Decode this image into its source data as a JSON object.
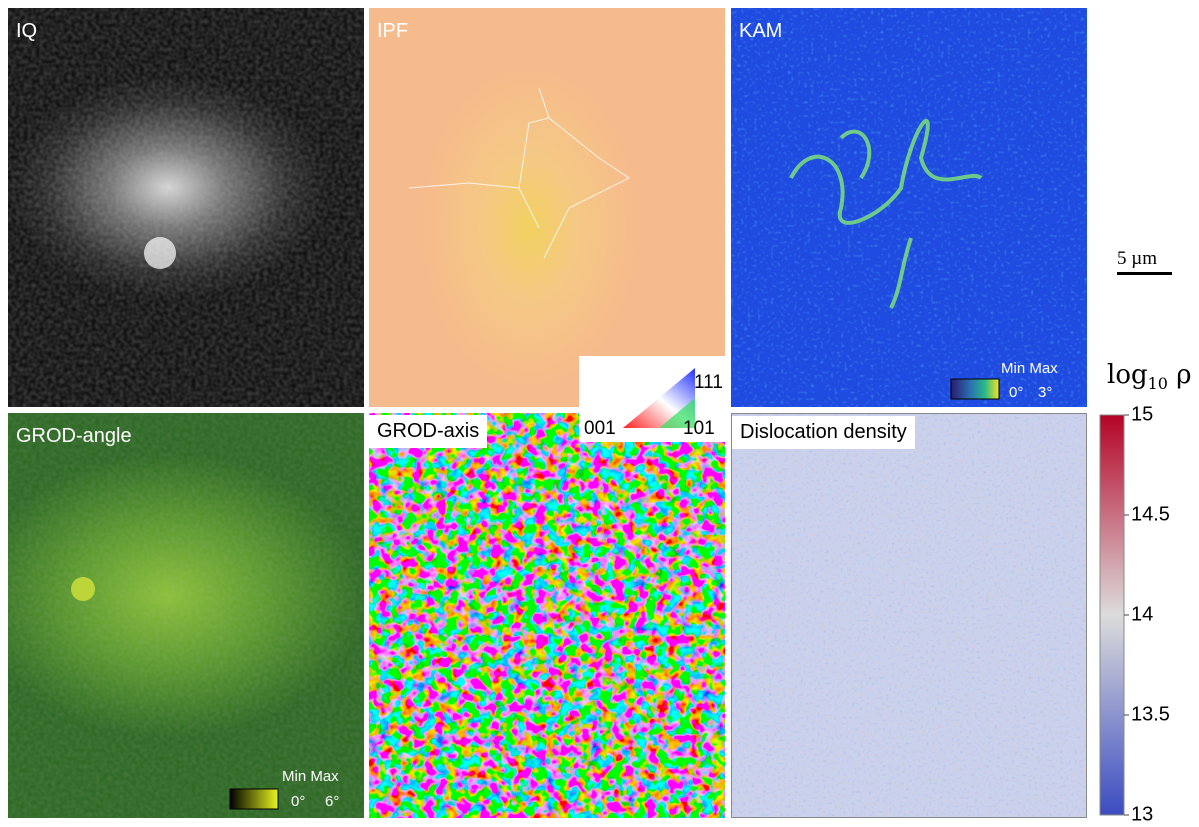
{
  "panels": [
    {
      "label": "IQ"
    },
    {
      "label": "IPF"
    },
    {
      "label": "KAM"
    },
    {
      "label": "GROD-angle"
    },
    {
      "label": "GROD-axis"
    },
    {
      "label": "Dislocation density"
    }
  ],
  "kam_legend": {
    "title": "Min Max",
    "min": "0°",
    "max": "3°"
  },
  "grod_angle_legend": {
    "title": "Min Max",
    "min": "0°",
    "max": "6°"
  },
  "ipf_key": {
    "top": "111",
    "left": "001",
    "right": "101"
  },
  "scale_bar": "5 µm",
  "colorbar": {
    "label_base": "log",
    "label_sub": "10",
    "label_var": "ρ",
    "lim": [
      13,
      15
    ],
    "ticks": [
      15,
      14.5,
      14,
      13.5,
      13
    ]
  }
}
